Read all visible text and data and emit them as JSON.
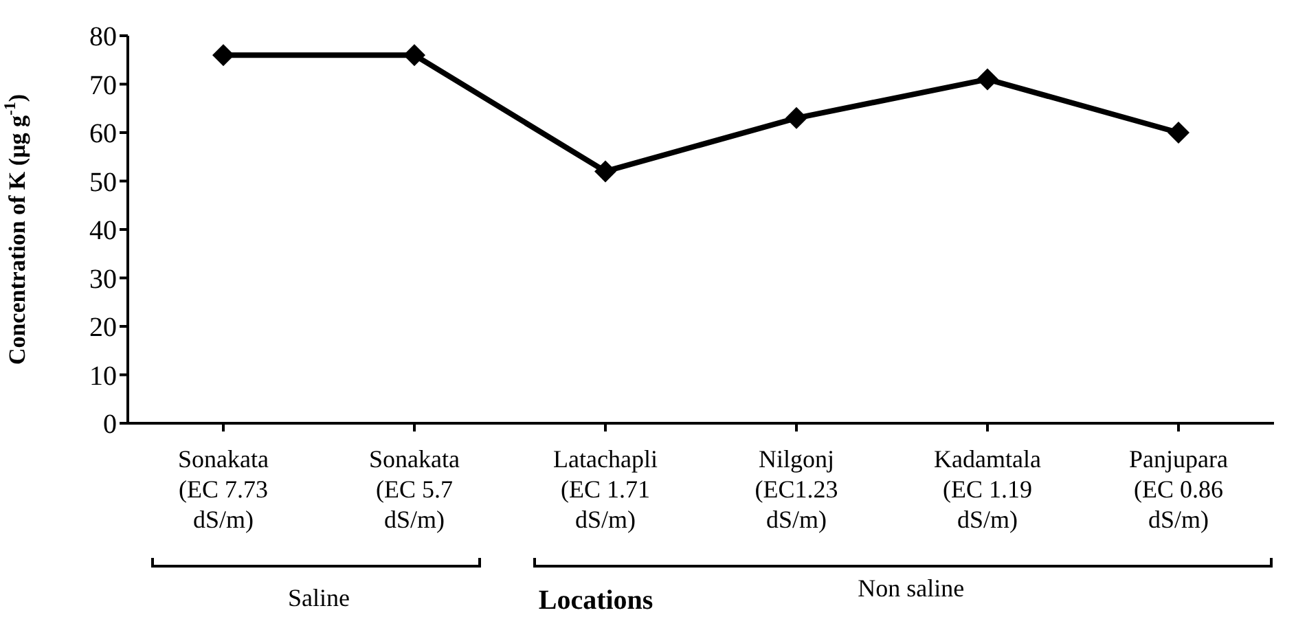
{
  "chart_data": {
    "type": "line",
    "xlabel": "Locations",
    "ylabel": "Concentration of K  (μg g$^{-1}$)",
    "categories": [
      "Sonakata (EC 7.73 dS/m)",
      "Sonakata (EC 5.7 dS/m)",
      "Latachapli (EC 1.71 dS/m)",
      "Nilgonj (EC1.23 dS/m)",
      "Kadamtala (EC 1.19 dS/m)",
      "Panjupara (EC 0.86 dS/m)"
    ],
    "series": [
      {
        "color": "#000000",
        "values": [
          76,
          76,
          52,
          63,
          71,
          60
        ]
      }
    ],
    "ylim": [
      0,
      80
    ],
    "yticks": [
      0,
      10,
      20,
      30,
      40,
      50,
      60,
      70,
      80
    ],
    "grid": false,
    "legend": false,
    "marker": "diamond",
    "line_style": "solid",
    "annotations": [
      "Saline",
      "Non saline"
    ]
  }
}
